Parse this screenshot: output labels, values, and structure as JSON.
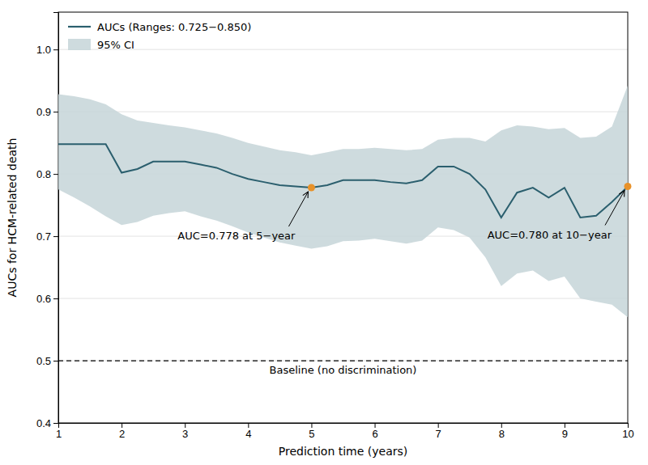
{
  "chart_data": {
    "type": "line",
    "xlabel": "Prediction time (years)",
    "ylabel": "AUCs for HCM-related death",
    "x": [
      1.0,
      1.25,
      1.5,
      1.75,
      2.0,
      2.25,
      2.5,
      2.75,
      3.0,
      3.25,
      3.5,
      3.75,
      4.0,
      4.25,
      4.5,
      4.75,
      5.0,
      5.25,
      5.5,
      5.75,
      6.0,
      6.25,
      6.5,
      6.75,
      7.0,
      7.25,
      7.5,
      7.75,
      8.0,
      8.25,
      8.5,
      8.75,
      9.0,
      9.25,
      9.5,
      9.75,
      10.0
    ],
    "xlim": [
      1.0,
      10.0
    ],
    "ylim": [
      0.4,
      1.06
    ],
    "xticks": [
      1,
      2,
      3,
      4,
      5,
      6,
      7,
      8,
      9,
      10
    ],
    "yticks": [
      0.4,
      0.5,
      0.6,
      0.7,
      0.8,
      0.9,
      {
        "value": 1.0,
        "label": "1.0"
      }
    ],
    "grid": true,
    "legend": "upper left",
    "series": [
      {
        "name": "AUCs (Ranges: 0.725−0.850)",
        "type": "line",
        "color": "#2b5f6e",
        "values": [
          0.848,
          0.848,
          0.848,
          0.848,
          0.802,
          0.808,
          0.82,
          0.82,
          0.82,
          0.815,
          0.81,
          0.8,
          0.792,
          0.787,
          0.782,
          0.78,
          0.778,
          0.782,
          0.79,
          0.79,
          0.79,
          0.787,
          0.785,
          0.79,
          0.812,
          0.812,
          0.8,
          0.775,
          0.73,
          0.77,
          0.778,
          0.762,
          0.778,
          0.73,
          0.733,
          0.755,
          0.78
        ]
      },
      {
        "name": "95% CI",
        "type": "band",
        "color": "#c5d5d8",
        "lower": [
          0.775,
          0.762,
          0.748,
          0.732,
          0.718,
          0.723,
          0.733,
          0.737,
          0.74,
          0.732,
          0.725,
          0.716,
          0.706,
          0.698,
          0.69,
          0.685,
          0.68,
          0.684,
          0.692,
          0.693,
          0.696,
          0.692,
          0.688,
          0.693,
          0.714,
          0.71,
          0.698,
          0.666,
          0.62,
          0.64,
          0.645,
          0.628,
          0.635,
          0.6,
          0.595,
          0.59,
          0.57
        ],
        "upper": [
          0.928,
          0.925,
          0.92,
          0.912,
          0.896,
          0.886,
          0.882,
          0.878,
          0.875,
          0.87,
          0.865,
          0.858,
          0.85,
          0.844,
          0.838,
          0.835,
          0.83,
          0.835,
          0.84,
          0.84,
          0.842,
          0.84,
          0.838,
          0.84,
          0.855,
          0.858,
          0.858,
          0.852,
          0.87,
          0.878,
          0.876,
          0.872,
          0.874,
          0.858,
          0.86,
          0.876,
          0.942
        ]
      }
    ],
    "baseline": {
      "value": 0.5,
      "label": "Baseline (no discrimination)",
      "line_style": "dashed"
    },
    "highlights": {
      "x": [
        5.0,
        10.0
      ],
      "y": [
        0.778,
        0.78
      ],
      "color": "#e8922a"
    },
    "annotations": [
      {
        "text": "AUC=0.778 at 5−year",
        "x": 5.0,
        "y": 0.778
      },
      {
        "text": "AUC=0.780 at 10−year",
        "x": 10.0,
        "y": 0.78
      }
    ]
  }
}
